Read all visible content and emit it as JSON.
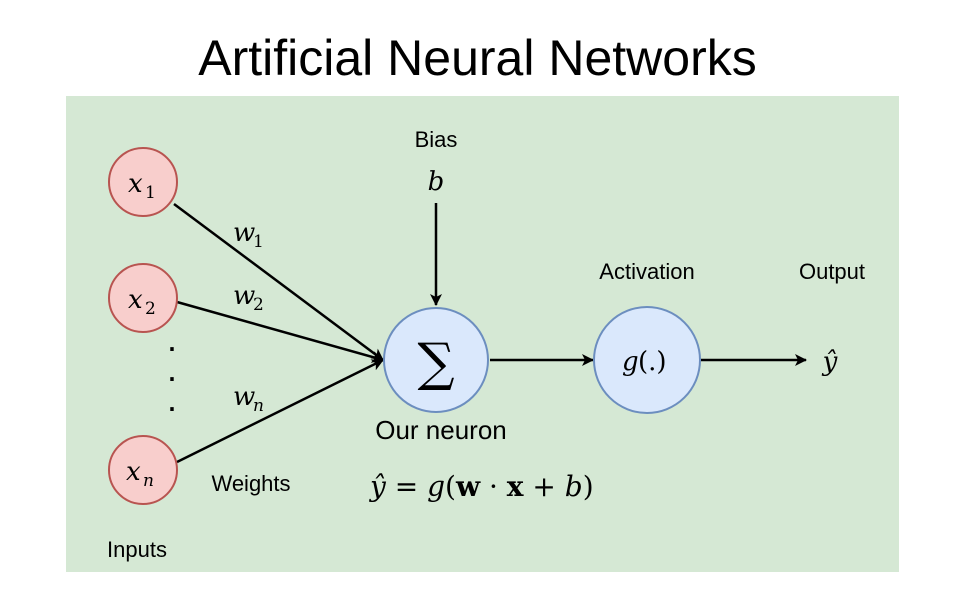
{
  "title": "Artificial Neural Networks",
  "colors": {
    "panel_bg": "#d5e8d4",
    "input_fill": "#f8cecc",
    "input_stroke": "#b85450",
    "neuron_fill": "#dae8fc",
    "neuron_stroke": "#6c8ebf",
    "arrow": "#000000"
  },
  "inputs": [
    {
      "base": "x",
      "sub": "1"
    },
    {
      "base": "x",
      "sub": "2"
    },
    {
      "base": "x",
      "sub": "n"
    }
  ],
  "weights": [
    {
      "base": "w",
      "sub": "1"
    },
    {
      "base": "w",
      "sub": "2"
    },
    {
      "base": "w",
      "sub": "n"
    }
  ],
  "ellipsis": "·",
  "labels": {
    "bias": "Bias",
    "bias_symbol": "b",
    "activation": "Activation",
    "output": "Output",
    "weights": "Weights",
    "inputs": "Inputs",
    "neuron": "Our neuron"
  },
  "neuron": {
    "symbol": "∑"
  },
  "activation_node": {
    "func": "g",
    "args": "(.)"
  },
  "output_symbol": "ŷ",
  "equation": {
    "lhs": "ŷ",
    "eq": " = ",
    "func": "g",
    "open": "(",
    "w": "w",
    "dot": " · ",
    "x": "x",
    "plus": " + ",
    "b": "b",
    "close": ")"
  }
}
